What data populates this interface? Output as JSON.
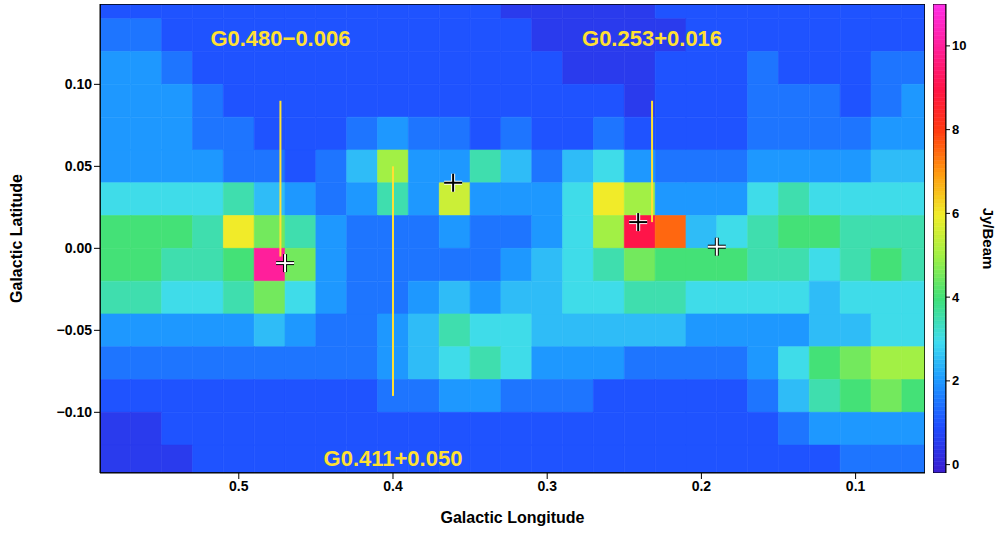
{
  "chart_data": {
    "type": "heatmap",
    "xlabel": "Galactic Longitude",
    "ylabel": "Galactic Latitude",
    "xlim": [
      0.59,
      0.055
    ],
    "ylim": [
      -0.137,
      0.149
    ],
    "xticks": [
      0.5,
      0.4,
      0.3,
      0.2,
      0.1
    ],
    "yticks": [
      {
        "value": -0.1,
        "label": "−0.10"
      },
      {
        "value": -0.05,
        "label": "−0.05"
      },
      {
        "value": 0,
        "label": "0.00"
      },
      {
        "value": 0.05,
        "label": "0.05"
      },
      {
        "value": 0.1,
        "label": "0.10"
      }
    ],
    "heatmap": {
      "x": [
        0.58,
        0.56,
        0.54,
        0.52,
        0.5,
        0.48,
        0.46,
        0.44,
        0.42,
        0.4,
        0.38,
        0.36,
        0.34,
        0.32,
        0.3,
        0.28,
        0.26,
        0.24,
        0.22,
        0.2,
        0.18,
        0.16,
        0.14,
        0.12,
        0.1,
        0.08,
        0.06
      ],
      "y": [
        0.15,
        0.13,
        0.11,
        0.09,
        0.07,
        0.05,
        0.03,
        0.01,
        -0.01,
        -0.03,
        -0.05,
        -0.07,
        -0.09,
        -0.11,
        -0.13
      ],
      "values": [
        [
          1,
          1,
          1,
          1,
          1,
          1,
          1,
          1,
          1,
          1,
          1,
          1,
          1,
          0.5,
          0.5,
          0.5,
          0.5,
          0.5,
          1,
          1,
          1,
          1,
          1,
          1,
          1,
          1,
          1
        ],
        [
          1.5,
          1.5,
          1,
          1,
          1,
          1,
          1,
          1,
          1,
          1,
          1,
          1,
          1,
          1,
          0.5,
          0.5,
          0.5,
          0.5,
          0.5,
          1,
          1,
          1,
          1,
          1,
          1,
          1,
          1
        ],
        [
          2,
          2,
          1.5,
          1,
          1,
          1,
          1,
          1,
          1,
          1,
          1,
          1,
          1,
          1,
          1,
          0.5,
          0.5,
          0.5,
          1,
          1,
          1,
          1.5,
          1,
          1,
          1,
          1.5,
          1.5
        ],
        [
          2,
          2,
          2,
          1.5,
          1,
          1,
          1,
          1,
          1,
          1,
          1,
          1,
          1,
          1,
          1,
          1,
          1,
          0.5,
          1,
          1,
          1,
          1.5,
          1.5,
          1.5,
          1,
          1.5,
          2
        ],
        [
          2,
          2,
          2,
          1.5,
          1.5,
          1,
          1,
          1,
          1.5,
          2,
          1.5,
          1.5,
          1,
          1.5,
          1,
          1,
          1.5,
          1,
          1,
          1,
          1,
          1.5,
          1.5,
          1.5,
          1.5,
          2,
          2
        ],
        [
          2,
          2,
          2,
          2,
          1.5,
          1.5,
          1,
          1.5,
          2.5,
          5,
          2,
          2,
          3.5,
          2.5,
          1.5,
          2.5,
          3,
          2,
          1.5,
          1.5,
          1.5,
          2,
          2,
          2,
          2,
          2.5,
          2.5
        ],
        [
          3,
          3,
          3,
          3,
          3.5,
          2.5,
          2,
          1.5,
          2,
          3.5,
          2,
          5.5,
          2,
          2,
          2,
          3,
          6,
          5,
          2,
          2,
          2,
          3,
          3.5,
          3,
          3,
          3,
          3
        ],
        [
          4,
          4,
          4,
          3.5,
          6,
          4.5,
          3.5,
          2,
          1.5,
          1.5,
          1.5,
          2,
          1.5,
          1.5,
          2,
          3,
          5,
          9,
          7.5,
          2.5,
          3,
          3.5,
          4,
          4,
          3.5,
          3.5,
          3.5
        ],
        [
          4,
          4,
          3.5,
          3.5,
          4,
          10,
          4.5,
          2,
          1.5,
          1.5,
          1.5,
          1.5,
          1.5,
          2,
          2.5,
          3,
          3.5,
          4.5,
          4,
          4,
          4,
          3.5,
          3.5,
          3,
          3.5,
          4,
          3.5
        ],
        [
          3.5,
          3.5,
          3,
          3,
          3.5,
          4.5,
          3,
          2,
          1.5,
          1.5,
          2,
          2.5,
          2,
          2.5,
          2.5,
          3,
          3,
          3.5,
          3.5,
          3,
          3,
          3,
          3,
          2.5,
          3,
          3,
          3
        ],
        [
          2,
          2,
          2,
          2,
          2,
          2.5,
          2,
          1.5,
          1.5,
          2,
          2.5,
          3.5,
          3,
          3,
          2.5,
          2.5,
          2.5,
          2.5,
          2.5,
          2,
          2,
          2,
          2,
          2.5,
          2.5,
          3,
          3
        ],
        [
          1.5,
          1.5,
          1.5,
          1.5,
          1.5,
          1.5,
          1.5,
          1.5,
          1.5,
          2,
          2.5,
          3,
          3.5,
          3,
          2,
          2,
          2,
          1.5,
          1.5,
          1.5,
          1.5,
          2,
          3,
          4,
          4.5,
          5,
          5
        ],
        [
          1,
          1,
          1,
          1,
          1,
          1,
          1,
          1,
          1,
          1.5,
          1.5,
          2,
          2,
          1.5,
          1.5,
          1.5,
          1,
          1,
          1,
          1,
          1,
          1.5,
          2.5,
          3.5,
          4,
          4.5,
          4
        ],
        [
          0.5,
          0.5,
          1,
          1,
          1,
          1,
          1,
          1,
          1,
          1,
          1,
          1,
          1,
          1,
          1,
          1,
          1,
          1,
          1,
          1,
          1,
          1,
          1.5,
          2,
          2,
          2,
          2
        ],
        [
          0.5,
          0.5,
          0.5,
          1,
          1,
          1,
          1,
          1,
          1,
          1,
          1,
          1,
          1,
          1,
          1,
          1,
          1,
          1,
          1,
          1,
          1,
          1,
          1,
          1,
          1.5,
          1.5,
          1.5
        ]
      ]
    },
    "colorbar": {
      "lim": [
        -0.2,
        11
      ],
      "ticks": [
        0,
        2,
        4,
        6,
        8,
        10
      ],
      "label": "Jy/Beam"
    },
    "annotations": [
      {
        "text": "G0.480−0.006",
        "x": 0.473,
        "y": 0.128,
        "line": [
          0.09,
          -0.005
        ]
      },
      {
        "text": "G0.253+0.016",
        "x": 0.232,
        "y": 0.128,
        "line": [
          0.09,
          0.016
        ]
      },
      {
        "text": "G0.411+0.050",
        "x": 0.4,
        "y": -0.128,
        "line": [
          0.05,
          -0.09
        ]
      }
    ],
    "markers": [
      {
        "x": 0.47,
        "y": -0.009,
        "color": "#ffffff"
      },
      {
        "x": 0.361,
        "y": 0.04,
        "color": "#000000"
      },
      {
        "x": 0.241,
        "y": 0.016,
        "color": "#000000"
      },
      {
        "x": 0.19,
        "y": 0.001,
        "color": "#ffffff"
      }
    ],
    "marker": "plus",
    "color": "#ffe033"
  }
}
